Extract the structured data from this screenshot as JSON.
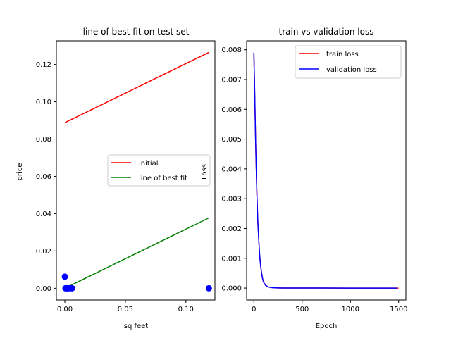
{
  "chart_data": [
    {
      "type": "line",
      "title": "line of best fit on test set",
      "xlabel": "sq feet",
      "ylabel": "price",
      "xlim": [
        -0.007,
        0.124
      ],
      "ylim": [
        -0.0063,
        0.1327
      ],
      "xticks": [
        0.0,
        0.05,
        0.1
      ],
      "xtick_labels": [
        "0.00",
        "0.05",
        "0.10"
      ],
      "yticks": [
        0.0,
        0.02,
        0.04,
        0.06,
        0.08,
        0.1,
        0.12
      ],
      "ytick_labels": [
        "0.00",
        "0.02",
        "0.04",
        "0.06",
        "0.08",
        "0.10",
        "0.12"
      ],
      "legend_position": "center-right",
      "series": [
        {
          "name": "initial",
          "color": "#ff0000",
          "x": [
            0.0,
            0.119
          ],
          "y": [
            0.0888,
            0.1265
          ]
        },
        {
          "name": "line of best fit",
          "color": "#008000",
          "x": [
            0.0,
            0.119
          ],
          "y": [
            0.0,
            0.0377
          ]
        }
      ],
      "scatter": {
        "color": "#0000ff",
        "x": [
          0.0,
          0.0005,
          0.001,
          0.0015,
          0.002,
          0.003,
          0.0045,
          0.006,
          0.119
        ],
        "y": [
          0.0062,
          0.0,
          0.0,
          0.0,
          0.0,
          0.0,
          0.0,
          0.0,
          0.0
        ]
      }
    },
    {
      "type": "line",
      "title": "train vs validation loss",
      "xlabel": "Epoch",
      "ylabel": "Loss",
      "xlim": [
        -75,
        1575
      ],
      "ylim": [
        -0.0004,
        0.0083
      ],
      "xticks": [
        0,
        500,
        1000,
        1500
      ],
      "xtick_labels": [
        "0",
        "500",
        "1000",
        "1500"
      ],
      "yticks": [
        0.0,
        0.001,
        0.002,
        0.003,
        0.004,
        0.005,
        0.006,
        0.007,
        0.008
      ],
      "ytick_labels": [
        "0.000",
        "0.001",
        "0.002",
        "0.003",
        "0.004",
        "0.005",
        "0.006",
        "0.007",
        "0.008"
      ],
      "legend_position": "top-right",
      "series": [
        {
          "name": "train loss",
          "color": "#ff0000",
          "x": [
            0,
            10,
            20,
            30,
            40,
            50,
            60,
            70,
            80,
            90,
            100,
            120,
            140,
            160,
            180,
            200,
            250,
            300,
            400,
            500,
            700,
            1000,
            1300,
            1499
          ],
          "y": [
            0.0079,
            0.0063,
            0.0046,
            0.0033,
            0.0023,
            0.00165,
            0.0011,
            0.00075,
            0.0005,
            0.00032,
            0.0002,
            0.0001,
            5e-05,
            3e-05,
            2e-05,
            1e-05,
            5e-06,
            3e-06,
            2e-06,
            1e-06,
            1e-06,
            0.0,
            0.0,
            0.0
          ]
        },
        {
          "name": "validation loss",
          "color": "#0000ff",
          "x": [
            0,
            10,
            20,
            30,
            40,
            50,
            60,
            70,
            80,
            90,
            100,
            120,
            140,
            160,
            180,
            200,
            250,
            300,
            400,
            500,
            700,
            1000,
            1300,
            1480
          ],
          "y": [
            0.0079,
            0.0063,
            0.0046,
            0.0033,
            0.0023,
            0.00165,
            0.0011,
            0.00075,
            0.0005,
            0.00032,
            0.0002,
            0.0001,
            5e-05,
            3e-05,
            2e-05,
            1e-05,
            5e-06,
            3e-06,
            2e-06,
            1e-06,
            1e-06,
            0.0,
            0.0,
            0.0
          ]
        }
      ]
    }
  ]
}
